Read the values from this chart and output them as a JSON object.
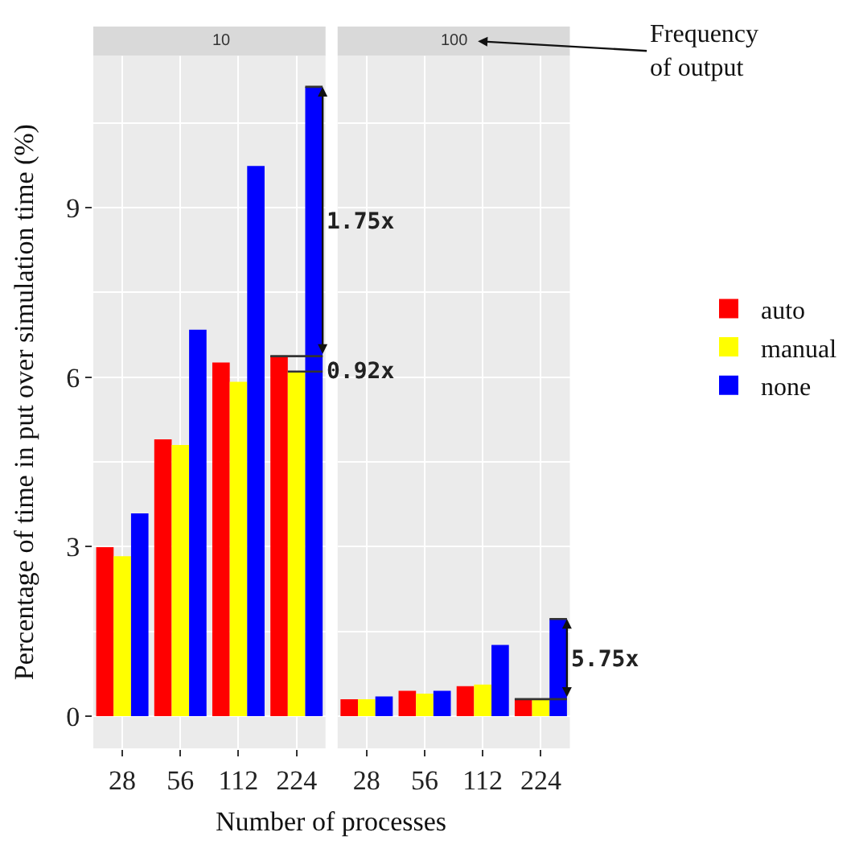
{
  "chart_data": [
    {
      "type": "bar",
      "title": "10",
      "ylabel": "Percentage of time in put over simulation time (%)",
      "xlabel": "Number of processes",
      "categories": [
        "28",
        "56",
        "112",
        "224"
      ],
      "ylim": [
        -0.57,
        11.69
      ],
      "yticks": [
        0,
        3,
        6,
        9
      ],
      "grid": true,
      "legend": "right",
      "series": [
        {
          "name": "auto",
          "color": "#ff0000",
          "values": [
            2.99,
            4.9,
            6.26,
            6.37
          ]
        },
        {
          "name": "manual",
          "color": "#ffff00",
          "values": [
            2.83,
            4.8,
            5.92,
            6.1
          ]
        },
        {
          "name": "none",
          "color": "#0000ff",
          "values": [
            3.59,
            6.84,
            9.74,
            11.14
          ]
        }
      ],
      "annotations": [
        "1.75x",
        {
          "text": "0.92x",
          "x": "224",
          "y": 6.1
        }
      ]
    },
    {
      "type": "bar",
      "title": "100",
      "categories": [
        "28",
        "56",
        "112",
        "224"
      ],
      "ylim": [
        -0.57,
        11.69
      ],
      "yticks": [
        0,
        3,
        6,
        9
      ],
      "grid": true,
      "tick_labels": "x",
      "series": [
        {
          "color": "#ff0000",
          "values": [
            0.3,
            0.45,
            0.53,
            0.3
          ]
        },
        {
          "color": "#ffff00",
          "values": [
            0.3,
            0.4,
            0.56,
            0.3
          ]
        },
        {
          "color": "#0000ff",
          "values": [
            0.35,
            0.45,
            1.26,
            1.72
          ]
        }
      ],
      "annotations": [
        "5.75x",
        "Frequency of output"
      ]
    }
  ]
}
